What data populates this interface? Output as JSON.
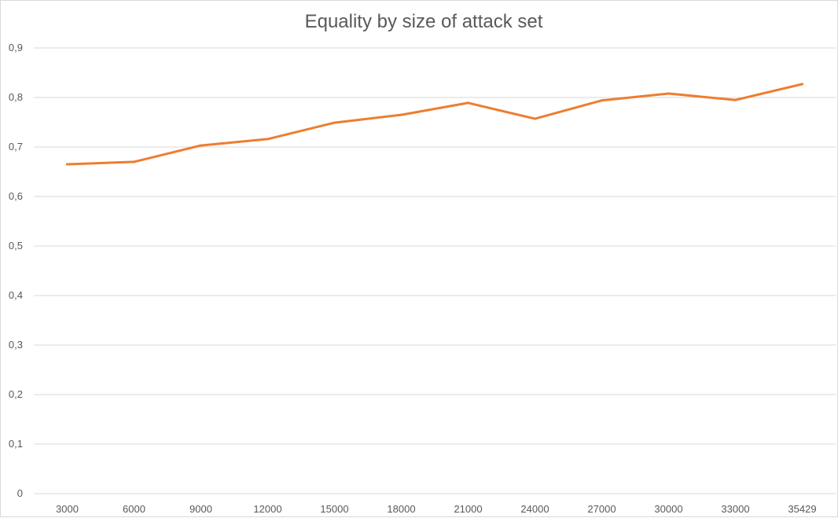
{
  "chart_data": {
    "type": "line",
    "title": "Equality by size of attack set",
    "xlabel": "",
    "ylabel": "",
    "categories": [
      "3000",
      "6000",
      "9000",
      "12000",
      "15000",
      "18000",
      "21000",
      "24000",
      "27000",
      "30000",
      "33000",
      "35429"
    ],
    "series": [
      {
        "values": [
          0.665,
          0.67,
          0.703,
          0.716,
          0.749,
          0.765,
          0.789,
          0.757,
          0.794,
          0.808,
          0.795,
          0.827
        ]
      }
    ],
    "ylim": [
      0,
      0.9
    ],
    "yticks": [
      "0",
      "0,1",
      "0,2",
      "0,3",
      "0,4",
      "0,5",
      "0,6",
      "0,7",
      "0,8",
      "0,9"
    ],
    "grid": "horizontal",
    "legend": "none",
    "colors": {
      "line": "#ED7D31",
      "grid": "#D9D9D9",
      "text": "#595959"
    }
  }
}
